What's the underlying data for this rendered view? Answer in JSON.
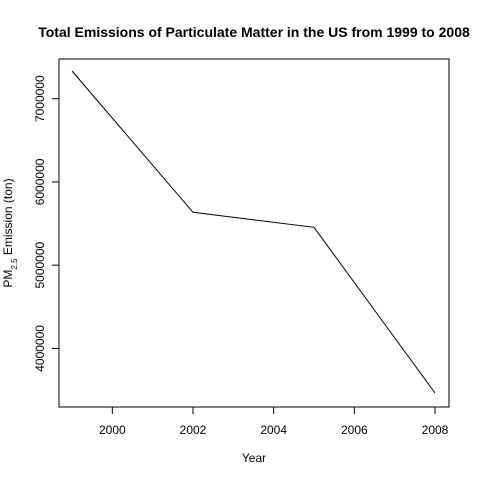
{
  "chart_data": {
    "type": "line",
    "title": "Total Emissions of Particulate Matter in the US from 1999 to 2008",
    "xlabel": "Year",
    "ylabel": {
      "prefix": "PM",
      "subscript": "2.5",
      "suffix": " Emission (ton)"
    },
    "x": [
      1999,
      2002,
      2005,
      2008
    ],
    "y": [
      7332967,
      5635780,
      5454703,
      3464206
    ],
    "xlim": [
      1999,
      2008
    ],
    "ylim": [
      3464206,
      7332967
    ],
    "x_ticks": [
      2000,
      2002,
      2004,
      2006,
      2008
    ],
    "y_ticks": [
      4000000,
      5000000,
      6000000,
      7000000
    ],
    "x_tick_labels": [
      "2000",
      "2002",
      "2004",
      "2006",
      "2008"
    ],
    "y_tick_labels": [
      "4000000",
      "5000000",
      "6000000",
      "7000000"
    ],
    "grid": false,
    "line_color": "#000000"
  }
}
